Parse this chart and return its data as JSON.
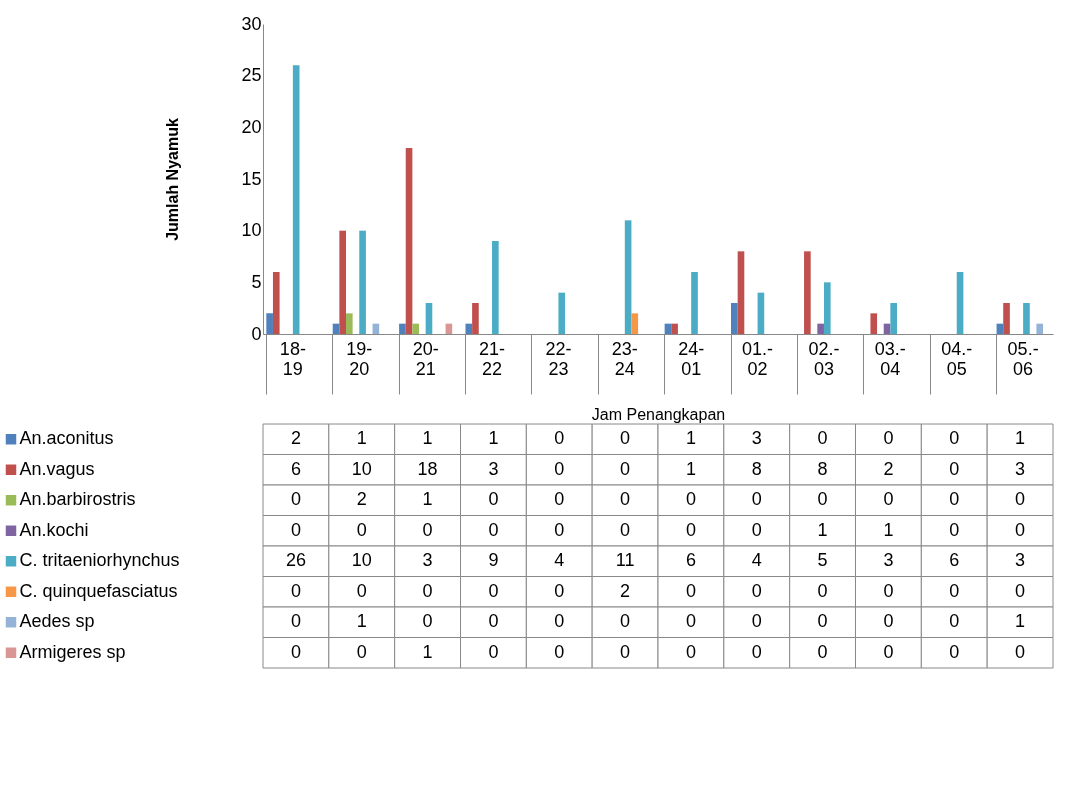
{
  "chart_data": {
    "type": "bar",
    "xlabel": "Jam Penangkapan",
    "ylabel": "Jumlah Nyamuk",
    "categories": [
      "18-19",
      "19-20",
      "20-21",
      "21-22",
      "22-23",
      "23-24",
      "24-01",
      "01.-02",
      "02.-03",
      "03.-04",
      "04.-05",
      "05.-06"
    ],
    "series": [
      {
        "name": "An.aconitus",
        "color": "#4f81bd",
        "values": [
          2,
          1,
          1,
          1,
          0,
          0,
          1,
          3,
          0,
          0,
          0,
          1
        ]
      },
      {
        "name": "An.vagus",
        "color": "#c0504d",
        "values": [
          6,
          10,
          18,
          3,
          0,
          0,
          1,
          8,
          8,
          2,
          0,
          3
        ]
      },
      {
        "name": "An.barbirostris",
        "color": "#9bbb59",
        "values": [
          0,
          2,
          1,
          0,
          0,
          0,
          0,
          0,
          0,
          0,
          0,
          0
        ]
      },
      {
        "name": "An.kochi",
        "color": "#8064a2",
        "values": [
          0,
          0,
          0,
          0,
          0,
          0,
          0,
          0,
          1,
          1,
          0,
          0
        ]
      },
      {
        "name": "C. tritaeniorhynchus",
        "color": "#4bacc6",
        "values": [
          26,
          10,
          3,
          9,
          4,
          11,
          6,
          4,
          5,
          3,
          6,
          3
        ]
      },
      {
        "name": "C. quinquefasciatus",
        "color": "#f79646",
        "values": [
          0,
          0,
          0,
          0,
          0,
          2,
          0,
          0,
          0,
          0,
          0,
          0
        ]
      },
      {
        "name": "Aedes sp",
        "color": "#95b3d7",
        "values": [
          0,
          1,
          0,
          0,
          0,
          0,
          0,
          0,
          0,
          0,
          0,
          1
        ]
      },
      {
        "name": "Armigeres sp",
        "color": "#d99694",
        "values": [
          0,
          0,
          1,
          0,
          0,
          0,
          0,
          0,
          0,
          0,
          0,
          0
        ]
      }
    ],
    "ylim": [
      0,
      30
    ],
    "yticks": [
      0,
      5,
      10,
      15,
      20,
      25,
      30
    ],
    "grid": false,
    "legend": "bottom",
    "data_labels": true
  }
}
